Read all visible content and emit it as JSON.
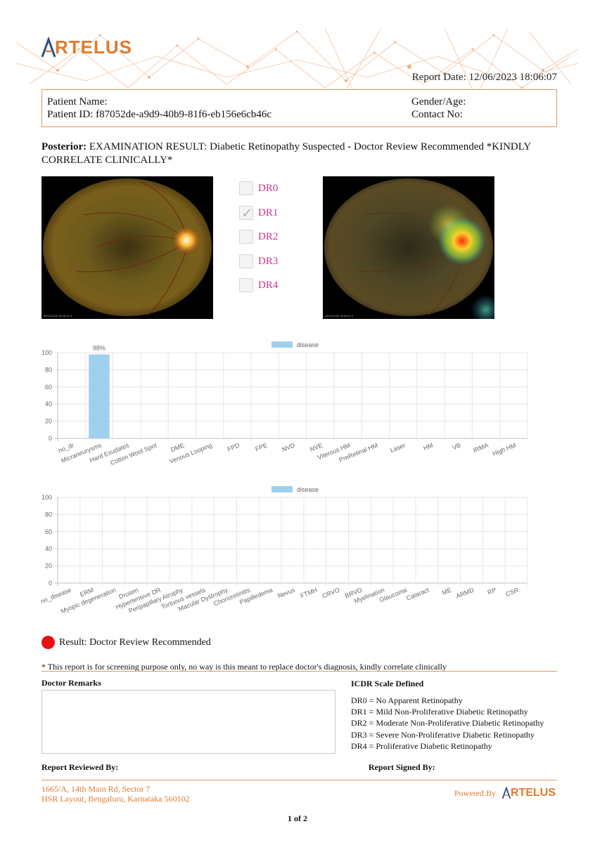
{
  "header": {
    "logo_text": "RTELUS",
    "report_date_label": "Report Date:",
    "report_date": "12/06/2023 18:06:07"
  },
  "patient": {
    "name_label": "Patient Name:",
    "name_value": "",
    "id_label": "Patient ID:",
    "id_value": "f87052de-a9d9-40b9-81f6-eb156e6cb46c",
    "gender_age_label": "Gender/Age:",
    "contact_label": "Contact No:"
  },
  "exam": {
    "prefix": "Posterior:",
    "text_part1": " EXAMINATION RESULT: Diabetic Retinopathy Suspected ",
    "separator": "-",
    "text_part2": " Doctor Review Recommended *KINDLY CORRELATE CLINICALLY*"
  },
  "images": {
    "left_stamp": "26/12/2020  18:49:42.0",
    "right_stamp": "26/12/2020  18:49:42.0"
  },
  "dr_grades": [
    {
      "label": "DR0",
      "checked": false
    },
    {
      "label": "DR1",
      "checked": true
    },
    {
      "label": "DR2",
      "checked": false
    },
    {
      "label": "DR3",
      "checked": false
    },
    {
      "label": "DR4",
      "checked": false
    }
  ],
  "chart_data": [
    {
      "type": "bar",
      "legend": "disease",
      "legend_color": "#9fd0ee",
      "categories": [
        "no_dr",
        "Micraneurysms",
        "Hard Exudates",
        "Cotton Wool Spot",
        "DME",
        "Venous Looping",
        "FPD",
        "FPE",
        "NVD",
        "NVE",
        "Viterous HM",
        "PreRetinal HM",
        "Laser",
        "HM",
        "VB",
        "IRMA",
        "High HM"
      ],
      "values": [
        0,
        98,
        0,
        0,
        0,
        0,
        0,
        0,
        0,
        0,
        0,
        0,
        0,
        0,
        0,
        0,
        0
      ],
      "data_labels": [
        "",
        "98%",
        "",
        "",
        "",
        "",
        "",
        "",
        "",
        "",
        "",
        "",
        "",
        "",
        "",
        "",
        ""
      ],
      "ylim": [
        0,
        100
      ],
      "yticks": [
        0,
        20,
        40,
        60,
        80,
        100
      ],
      "grid": true,
      "legend_position": "top"
    },
    {
      "type": "bar",
      "legend": "disease",
      "legend_color": "#9fd0ee",
      "categories": [
        "no_disease",
        "ERM",
        "Myopic degeneration",
        "Drusen",
        "Hypertensive DR",
        "Peripapillary Atrophy",
        "Tortuous vessels",
        "Macular Dystrophy",
        "Chorioretinitis",
        "Papilledema",
        "Nevus",
        "FTMH",
        "CRVO",
        "BRVO",
        "Myelination",
        "Glaucoma",
        "Cataract",
        "ME",
        "ARMD",
        "RP",
        "CSR"
      ],
      "values": [
        0,
        0,
        0,
        0,
        0,
        0,
        0,
        0,
        0,
        0,
        0,
        0,
        0,
        0,
        0,
        0,
        0,
        0,
        0,
        0,
        0
      ],
      "data_labels": [
        "",
        "",
        "",
        "",
        "",
        "",
        "",
        "",
        "",
        "",
        "",
        "",
        "",
        "",
        "",
        "",
        "",
        "",
        "",
        "",
        ""
      ],
      "ylim": [
        0,
        100
      ],
      "yticks": [
        0,
        20,
        40,
        60,
        80,
        100
      ],
      "grid": true,
      "legend_position": "top"
    }
  ],
  "result": {
    "text": "Result: Doctor Review Recommended",
    "status_color": "#ea1010"
  },
  "disclaimer": "* This report is for screening purpose only, no way is this meant to replace doctor's diagnosis, kindly correlate clinically",
  "remarks": {
    "title": "Doctor Remarks",
    "value": ""
  },
  "icdr": {
    "title": "ICDR Scale Defined",
    "lines": [
      "DR0 = No Apparent Retinopathy",
      "DR1 = Mild Non-Proliferative Diabetic Retinopathy",
      "DR2 = Moderate Non-Proliferative Diabetic Retinopathy",
      "DR3 = Severe Non-Proliferative Diabetic Retinopathy",
      "DR4 = Proliferative Diabetic Retinopathy"
    ]
  },
  "signoff": {
    "reviewed": "Report Reviewed By:",
    "signed": "Report Signed By:"
  },
  "footer": {
    "address_line1": "1665/A, 14th Main Rd, Sector 7",
    "address_line2": "HSR Layout, Bengaluru, Karnataka 560102",
    "powered_by": "Powered By",
    "logo_text": "RTELUS",
    "page": "1 of 2"
  },
  "colors": {
    "brand": "#e07a2e",
    "dr_label": "#c9368c",
    "border": "#e8955a"
  }
}
